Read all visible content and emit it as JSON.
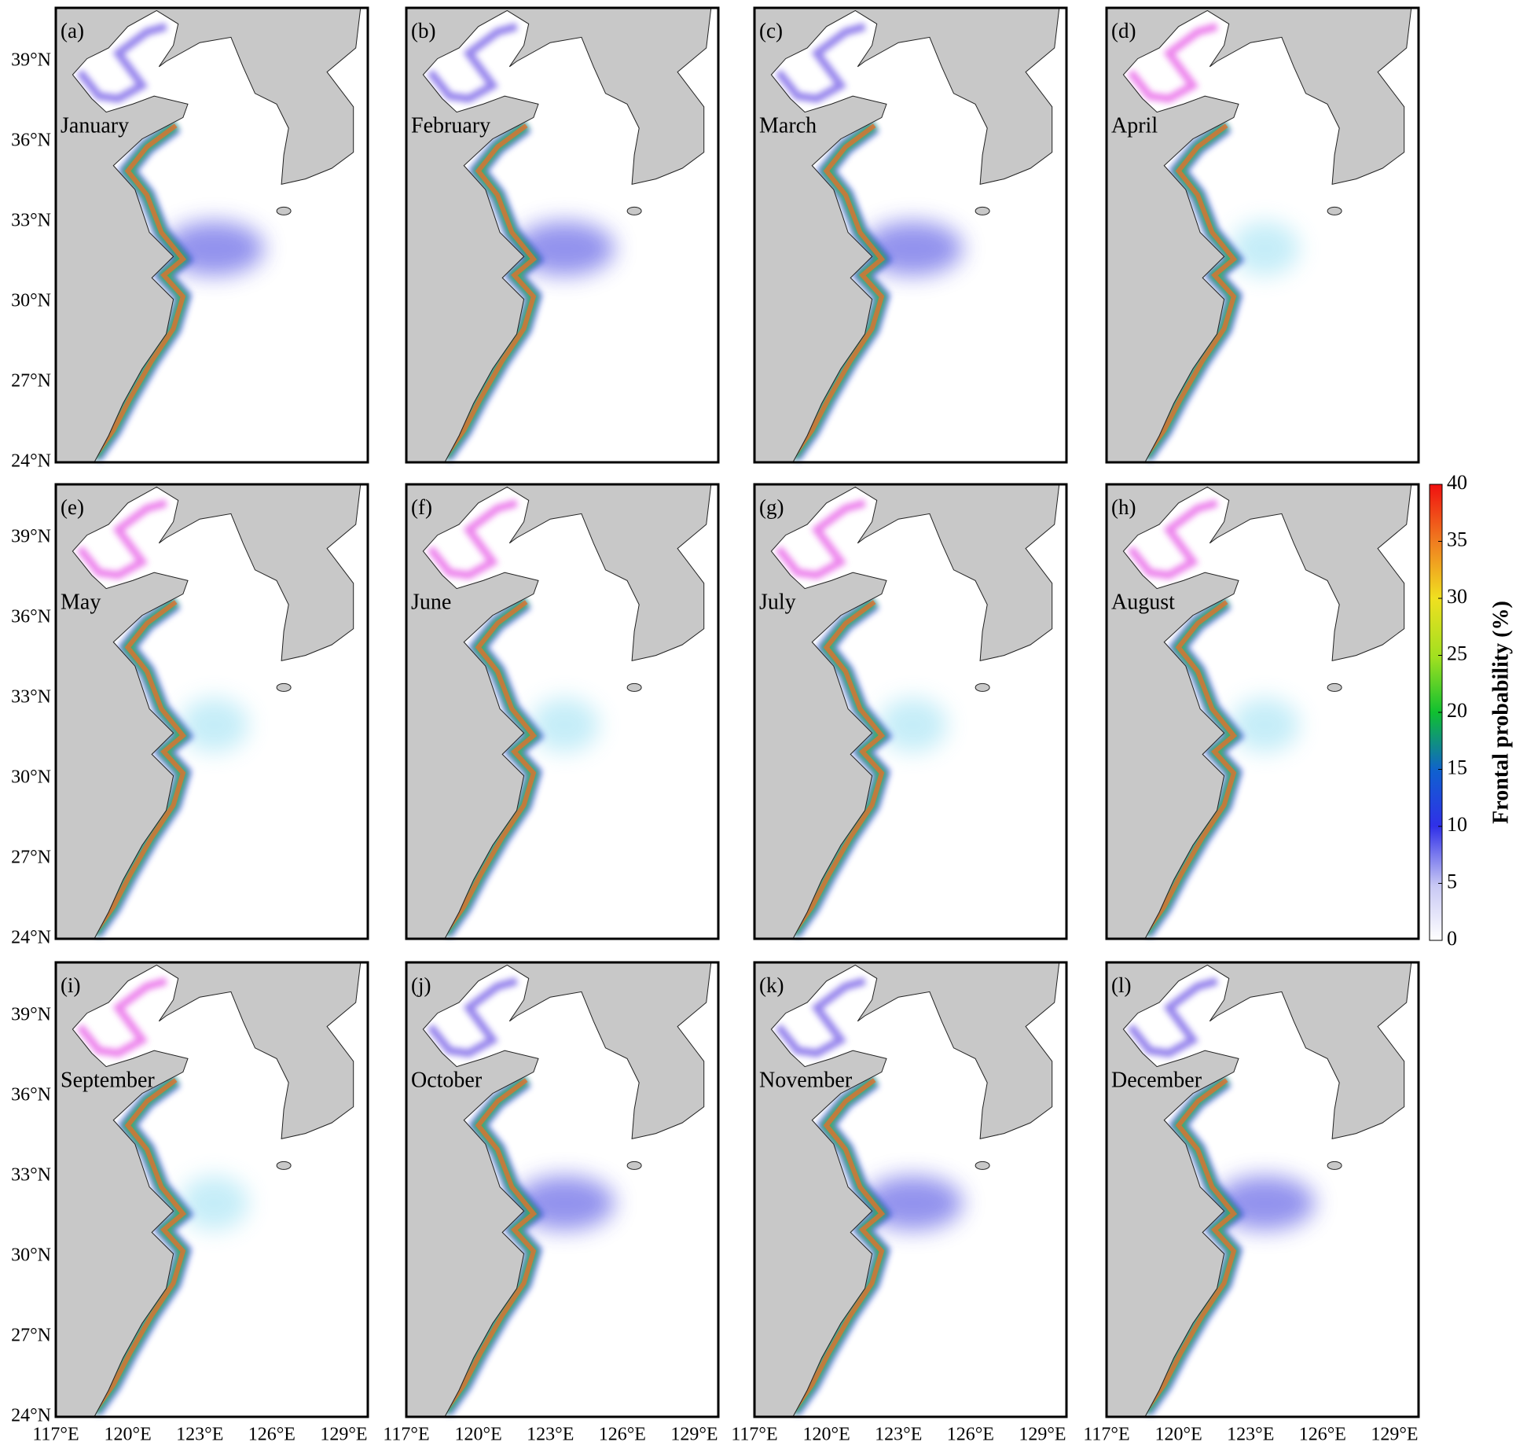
{
  "figure": {
    "panels": [
      {
        "letter": "(a)",
        "month": "January"
      },
      {
        "letter": "(b)",
        "month": "February"
      },
      {
        "letter": "(c)",
        "month": "March"
      },
      {
        "letter": "(d)",
        "month": "April"
      },
      {
        "letter": "(e)",
        "month": "May"
      },
      {
        "letter": "(f)",
        "month": "June"
      },
      {
        "letter": "(g)",
        "month": "July"
      },
      {
        "letter": "(h)",
        "month": "August"
      },
      {
        "letter": "(i)",
        "month": "September"
      },
      {
        "letter": "(j)",
        "month": "October"
      },
      {
        "letter": "(k)",
        "month": "November"
      },
      {
        "letter": "(l)",
        "month": "December"
      }
    ],
    "xlim": [
      117,
      130
    ],
    "ylim": [
      24,
      41
    ],
    "xticks": [
      {
        "value": 117,
        "label": "117°E"
      },
      {
        "value": 120,
        "label": "120°E"
      },
      {
        "value": 123,
        "label": "123°E"
      },
      {
        "value": 126,
        "label": "126°E"
      },
      {
        "value": 129,
        "label": "129°E"
      }
    ],
    "yticks": [
      {
        "value": 24,
        "label": "24°N"
      },
      {
        "value": 27,
        "label": "27°N"
      },
      {
        "value": 30,
        "label": "30°N"
      },
      {
        "value": 33,
        "label": "33°N"
      },
      {
        "value": 36,
        "label": "36°N"
      },
      {
        "value": 39,
        "label": "39°N"
      }
    ],
    "colorbar": {
      "label": "Frontal probability (%)",
      "lim": [
        0,
        40
      ],
      "ticks": [
        0,
        5,
        10,
        15,
        20,
        25,
        30,
        35,
        40
      ]
    }
  }
}
